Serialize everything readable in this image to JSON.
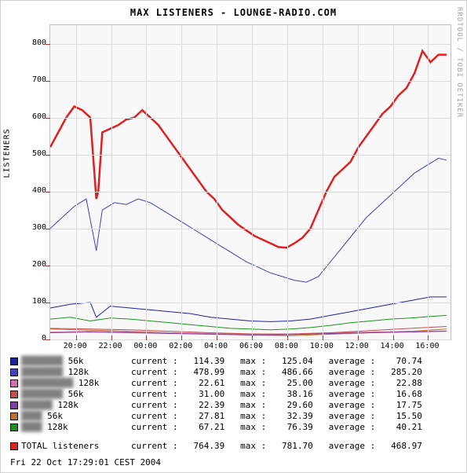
{
  "title": "MAX LISTENERS -  LOUNGE-RADIO.COM",
  "watermark": "RRDTOOL / TOBI OETIKER",
  "ylabel": "LISTENERS",
  "timestamp": "Fri 22 Oct 17:29:01 CEST 2004",
  "chart": {
    "background_color": "#f8f8f8",
    "grid_color": "#dcdcdc",
    "axis_color": "#c0c0c0",
    "tick_color": "#b03030",
    "ylim": [
      0,
      850
    ],
    "ytick_step": 100,
    "ytick_labels": [
      0,
      100,
      200,
      300,
      400,
      500,
      600,
      700,
      800
    ],
    "xtick_labels": [
      "20:00",
      "22:00",
      "00:00",
      "02:00",
      "04:00",
      "06:00",
      "08:00",
      "10:00",
      "12:00",
      "14:00",
      "16:00"
    ],
    "xtick_positions": [
      0.064,
      0.152,
      0.24,
      0.328,
      0.416,
      0.504,
      0.592,
      0.68,
      0.768,
      0.856,
      0.944
    ],
    "xlim_frac": [
      0,
      1
    ]
  },
  "series": [
    {
      "name": "total",
      "color": "#e02020",
      "width": 2.5,
      "points": [
        [
          0.0,
          520
        ],
        [
          0.02,
          560
        ],
        [
          0.04,
          600
        ],
        [
          0.06,
          630
        ],
        [
          0.08,
          620
        ],
        [
          0.1,
          600
        ],
        [
          0.115,
          380
        ],
        [
          0.12,
          400
        ],
        [
          0.13,
          560
        ],
        [
          0.15,
          570
        ],
        [
          0.17,
          580
        ],
        [
          0.19,
          595
        ],
        [
          0.21,
          600
        ],
        [
          0.23,
          620
        ],
        [
          0.25,
          600
        ],
        [
          0.27,
          580
        ],
        [
          0.29,
          550
        ],
        [
          0.31,
          520
        ],
        [
          0.33,
          490
        ],
        [
          0.35,
          460
        ],
        [
          0.37,
          430
        ],
        [
          0.39,
          400
        ],
        [
          0.41,
          380
        ],
        [
          0.43,
          350
        ],
        [
          0.45,
          330
        ],
        [
          0.47,
          310
        ],
        [
          0.49,
          295
        ],
        [
          0.51,
          280
        ],
        [
          0.53,
          270
        ],
        [
          0.55,
          260
        ],
        [
          0.57,
          250
        ],
        [
          0.59,
          248
        ],
        [
          0.61,
          260
        ],
        [
          0.63,
          275
        ],
        [
          0.65,
          300
        ],
        [
          0.67,
          350
        ],
        [
          0.69,
          400
        ],
        [
          0.71,
          440
        ],
        [
          0.73,
          460
        ],
        [
          0.75,
          480
        ],
        [
          0.77,
          520
        ],
        [
          0.79,
          550
        ],
        [
          0.81,
          580
        ],
        [
          0.83,
          610
        ],
        [
          0.85,
          630
        ],
        [
          0.87,
          660
        ],
        [
          0.89,
          680
        ],
        [
          0.91,
          720
        ],
        [
          0.93,
          780
        ],
        [
          0.95,
          750
        ],
        [
          0.97,
          770
        ],
        [
          0.99,
          770
        ]
      ]
    },
    {
      "name": "s128",
      "color": "#4040c0",
      "width": 1,
      "points": [
        [
          0.0,
          300
        ],
        [
          0.03,
          330
        ],
        [
          0.06,
          360
        ],
        [
          0.09,
          380
        ],
        [
          0.115,
          240
        ],
        [
          0.13,
          350
        ],
        [
          0.16,
          370
        ],
        [
          0.19,
          365
        ],
        [
          0.22,
          380
        ],
        [
          0.25,
          370
        ],
        [
          0.28,
          350
        ],
        [
          0.31,
          330
        ],
        [
          0.34,
          310
        ],
        [
          0.37,
          290
        ],
        [
          0.4,
          270
        ],
        [
          0.43,
          250
        ],
        [
          0.46,
          230
        ],
        [
          0.49,
          210
        ],
        [
          0.52,
          195
        ],
        [
          0.55,
          180
        ],
        [
          0.58,
          170
        ],
        [
          0.61,
          160
        ],
        [
          0.64,
          155
        ],
        [
          0.67,
          170
        ],
        [
          0.7,
          210
        ],
        [
          0.73,
          250
        ],
        [
          0.76,
          290
        ],
        [
          0.79,
          330
        ],
        [
          0.82,
          360
        ],
        [
          0.85,
          390
        ],
        [
          0.88,
          420
        ],
        [
          0.91,
          450
        ],
        [
          0.94,
          470
        ],
        [
          0.97,
          490
        ],
        [
          0.99,
          485
        ]
      ]
    },
    {
      "name": "s56",
      "color": "#2020a0",
      "width": 1,
      "points": [
        [
          0.0,
          85
        ],
        [
          0.05,
          95
        ],
        [
          0.1,
          100
        ],
        [
          0.115,
          60
        ],
        [
          0.15,
          90
        ],
        [
          0.2,
          85
        ],
        [
          0.25,
          80
        ],
        [
          0.3,
          75
        ],
        [
          0.35,
          70
        ],
        [
          0.4,
          60
        ],
        [
          0.45,
          55
        ],
        [
          0.5,
          50
        ],
        [
          0.55,
          48
        ],
        [
          0.6,
          50
        ],
        [
          0.65,
          55
        ],
        [
          0.7,
          65
        ],
        [
          0.75,
          75
        ],
        [
          0.8,
          85
        ],
        [
          0.85,
          95
        ],
        [
          0.9,
          105
        ],
        [
          0.95,
          115
        ],
        [
          0.99,
          115
        ]
      ]
    },
    {
      "name": "g128",
      "color": "#209020",
      "width": 1,
      "points": [
        [
          0.0,
          55
        ],
        [
          0.05,
          60
        ],
        [
          0.1,
          50
        ],
        [
          0.15,
          58
        ],
        [
          0.2,
          55
        ],
        [
          0.25,
          50
        ],
        [
          0.3,
          45
        ],
        [
          0.35,
          40
        ],
        [
          0.4,
          35
        ],
        [
          0.45,
          30
        ],
        [
          0.5,
          28
        ],
        [
          0.55,
          26
        ],
        [
          0.6,
          28
        ],
        [
          0.65,
          32
        ],
        [
          0.7,
          38
        ],
        [
          0.75,
          45
        ],
        [
          0.8,
          50
        ],
        [
          0.85,
          55
        ],
        [
          0.9,
          58
        ],
        [
          0.95,
          62
        ],
        [
          0.99,
          65
        ]
      ]
    },
    {
      "name": "t56",
      "color": "#c07030",
      "width": 1,
      "points": [
        [
          0.0,
          28
        ],
        [
          0.1,
          25
        ],
        [
          0.2,
          22
        ],
        [
          0.3,
          18
        ],
        [
          0.4,
          15
        ],
        [
          0.5,
          12
        ],
        [
          0.6,
          10
        ],
        [
          0.7,
          14
        ],
        [
          0.8,
          18
        ],
        [
          0.9,
          22
        ],
        [
          0.99,
          28
        ]
      ]
    },
    {
      "name": "p128",
      "color": "#d070b0",
      "width": 1,
      "points": [
        [
          0.0,
          20
        ],
        [
          0.1,
          22
        ],
        [
          0.2,
          20
        ],
        [
          0.3,
          18
        ],
        [
          0.4,
          16
        ],
        [
          0.5,
          14
        ],
        [
          0.6,
          15
        ],
        [
          0.7,
          18
        ],
        [
          0.8,
          20
        ],
        [
          0.9,
          22
        ],
        [
          0.99,
          23
        ]
      ]
    },
    {
      "name": "t128",
      "color": "#8040a0",
      "width": 1,
      "points": [
        [
          0.0,
          18
        ],
        [
          0.1,
          20
        ],
        [
          0.2,
          18
        ],
        [
          0.3,
          16
        ],
        [
          0.4,
          14
        ],
        [
          0.5,
          12
        ],
        [
          0.6,
          13
        ],
        [
          0.7,
          16
        ],
        [
          0.8,
          18
        ],
        [
          0.9,
          20
        ],
        [
          0.99,
          22
        ]
      ]
    },
    {
      "name": "u56",
      "color": "#c05050",
      "width": 1,
      "points": [
        [
          0.0,
          30
        ],
        [
          0.1,
          28
        ],
        [
          0.2,
          26
        ],
        [
          0.3,
          22
        ],
        [
          0.4,
          18
        ],
        [
          0.5,
          15
        ],
        [
          0.6,
          14
        ],
        [
          0.7,
          18
        ],
        [
          0.8,
          24
        ],
        [
          0.9,
          30
        ],
        [
          0.99,
          35
        ]
      ]
    }
  ],
  "legend": [
    {
      "color": "#2020a0",
      "label": "56k",
      "cur": "114.39",
      "max": "125.04",
      "avg": "70.74",
      "blur": "████████"
    },
    {
      "color": "#4040c0",
      "label": "128k",
      "cur": "478.99",
      "max": "486.66",
      "avg": "285.20",
      "blur": "████████"
    },
    {
      "color": "#d070b0",
      "label": "128k",
      "cur": "22.61",
      "max": "25.00",
      "avg": "22.88",
      "blur": "██████████"
    },
    {
      "color": "#c05050",
      "label": "56k",
      "cur": "31.00",
      "max": "38.16",
      "avg": "16.68",
      "blur": "████████"
    },
    {
      "color": "#8040a0",
      "label": "128k",
      "cur": "22.39",
      "max": "29.60",
      "avg": "17.75",
      "blur": "██████"
    },
    {
      "color": "#c07030",
      "label": "56k",
      "cur": "27.81",
      "max": "32.39",
      "avg": "15.50",
      "blur": "████"
    },
    {
      "color": "#209020",
      "label": "128k",
      "cur": "67.21",
      "max": "76.39",
      "avg": "40.21",
      "blur": "████"
    }
  ],
  "legend_total": {
    "color": "#e02020",
    "label": "TOTAL listeners",
    "cur": "764.39",
    "max": "781.70",
    "avg": "468.97"
  },
  "legend_header": {
    "cur": "current :",
    "max": "max :",
    "avg": "average :"
  }
}
